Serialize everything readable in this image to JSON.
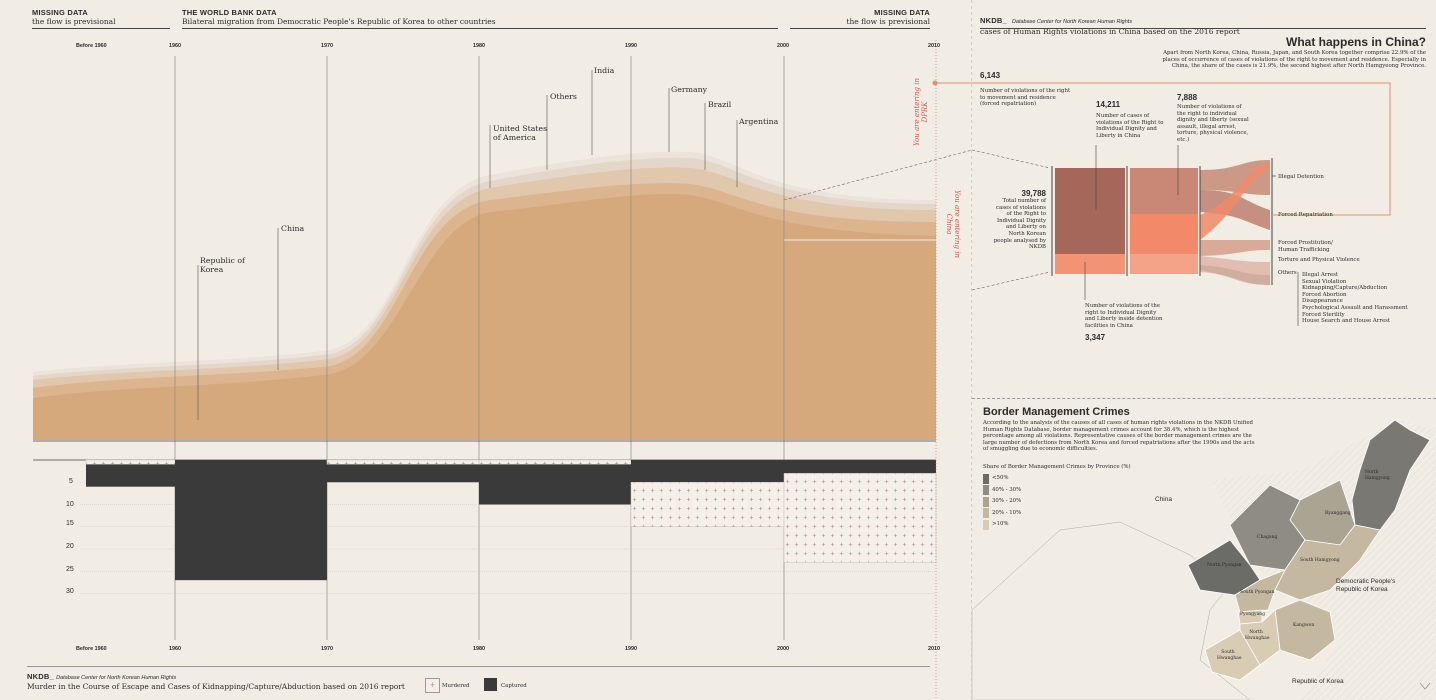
{
  "header_left": {
    "title": "MISSING DATA",
    "subtitle": "the flow is previsional"
  },
  "header_center": {
    "title": "THE WORLD BANK DATA",
    "subtitle": "Bilateral migration from Democratic People's Republic of Korea to other countries"
  },
  "header_right": {
    "title": "MISSING DATA",
    "subtitle": "the flow is previsional"
  },
  "top_axis": [
    "Before 1960",
    "1960",
    "1970",
    "1980",
    "1990",
    "2000",
    "2010"
  ],
  "bottom_axis": [
    "Before 1960",
    "1960",
    "1970",
    "1980",
    "1990",
    "2000",
    "2010"
  ],
  "flow_labels": {
    "korea": "Republic of Korea",
    "china": "China",
    "usa": "United States of America",
    "others": "Others",
    "india": "India",
    "germany": "Germany",
    "brazil": "Brazil",
    "argentina": "Argentina"
  },
  "vertical_notes": {
    "entering_dprk": "You are entering in DPRK",
    "entering_china": "You are entering in China"
  },
  "bar_axis": [
    "5",
    "10",
    "15",
    "20",
    "25",
    "30"
  ],
  "bar_chart": {
    "periods": [
      "Before 1960",
      "1960",
      "1970",
      "1980",
      "1990",
      "2000"
    ],
    "captured": [
      5,
      27,
      4,
      9,
      5,
      3
    ],
    "murdered": [
      1,
      0,
      1,
      1,
      10,
      20
    ]
  },
  "footer": {
    "source": "NKDB_",
    "source_detail": "Database Center for North Korean Human Rights",
    "caption": "Murder in the Course of Escape and Cases of Kidnapping/Capture/Abduction based on 2016 report",
    "legend_murdered": "Murdered",
    "legend_captured": "Captured"
  },
  "right_header": {
    "source": "NKDB_",
    "source_detail": "Database Center for North Korean Human Rights",
    "subtitle": "cases of Human Rights violations in China based on the 2016 report"
  },
  "china_section": {
    "title": "What happens in China?",
    "intro": "Apart from North Korea, China, Russia, Japan, and South Korea together comprise 22.9% of the places of occurrence of cases of violations of the right to movement and residence. Especially in China, the share of the cases is 21.9%, the second highest after North Hamgyeong Province.",
    "n1": "6,143",
    "n1_text": "Number of violations of the right to movement and residence (forced repatriation)",
    "n2": "14,211",
    "n2_text": "Number of cases of violations of the Right to Individual Dignity and Liberty in China",
    "n3": "7,888",
    "n3_text": "Number of violations of the right to individual dignity and liberty (sexual assault, illegal arrest, torture, physical violence, etc.)",
    "total": "39,788",
    "total_text": "Total number of cases of violations of the Right to Individual Dignity and Liberty on North Korean people analysed by NKDB",
    "n4_text": "Number of violations of the right to Individual Dignity and Liberty inside detention facilities in China",
    "n4": "3,347",
    "outcomes": [
      "Illegal Detention",
      "Forced Repatriation",
      "Forced Prostitution/ Human Trafficking",
      "Torture and Physical Violence"
    ],
    "others_label": "Others",
    "others": [
      "Illegal Arrest",
      "Sexual Violation",
      "Kidnapping/Capture/Abduction",
      "Forced Abortion",
      "Disappearance",
      "Psychological Assault and Harassment",
      "Forced Sterility",
      "House Search and House Arrest"
    ]
  },
  "border_section": {
    "title": "Border Management Crimes",
    "text": "According to the analysis of the causes of all cases of human rights violations in the NKDB Unified Human Rights Database, border management crimes account for 38.4%, which is the highest percentage among all violations. Representative causes of the border management crimes are the large number of defections from North Korea and forced repatriations after the 1990s and the acts of smuggling due to economic difficulties.",
    "legend_title": "Share of Border Management Crimes by Province (%)",
    "legend": [
      "<50%",
      "40% - 30%",
      "30% - 20%",
      "20% - 10%",
      ">10%"
    ],
    "legend_colors": [
      "#6b6b68",
      "#8f8c84",
      "#aaa493",
      "#c4b8a0",
      "#d8ccb4"
    ],
    "map_labels": {
      "china": "China",
      "dprk": "Democratic People's Republic of Korea",
      "rok": "Republic of Korea",
      "north_hamgyong": "North Hamgyong",
      "ryanggang": "Ryanggang",
      "chagang": "Chagang",
      "north_pyongan": "North Pyongan",
      "south_hamgyong": "South Hamgyong",
      "south_pyongan": "South Pyongan",
      "pyongyang": "Pyongyang",
      "kangwon": "Kangwon",
      "north_hwanghae": "North Hwanghae",
      "south_hwanghae": "South Hwanghae"
    }
  }
}
